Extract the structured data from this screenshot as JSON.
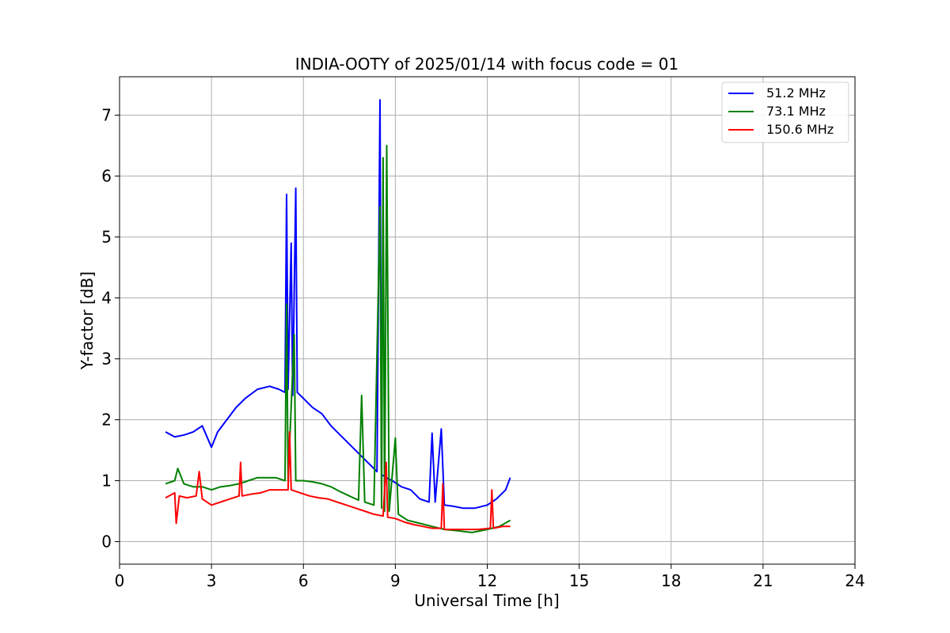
{
  "chart_data": {
    "type": "line",
    "title": "INDIA-OOTY of 2025/01/14 with focus code = 01",
    "xlabel": "Universal Time [h]",
    "ylabel": "Y-factor [dB]",
    "xlim": [
      0,
      24
    ],
    "ylim": [
      -0.37,
      7.63
    ],
    "xticks": [
      0,
      3,
      6,
      9,
      12,
      15,
      18,
      21,
      24
    ],
    "yticks": [
      0,
      1,
      2,
      3,
      4,
      5,
      6,
      7
    ],
    "grid": true,
    "legend_position": "top-right",
    "series": [
      {
        "name": "  51.2 MHz",
        "color": "#0000ff",
        "points": [
          [
            1.5,
            1.8
          ],
          [
            1.8,
            1.72
          ],
          [
            2.1,
            1.75
          ],
          [
            2.4,
            1.8
          ],
          [
            2.7,
            1.9
          ],
          [
            3.0,
            1.55
          ],
          [
            3.2,
            1.8
          ],
          [
            3.5,
            2.0
          ],
          [
            3.8,
            2.2
          ],
          [
            4.1,
            2.35
          ],
          [
            4.5,
            2.5
          ],
          [
            4.9,
            2.55
          ],
          [
            5.2,
            2.5
          ],
          [
            5.4,
            2.45
          ],
          [
            5.45,
            5.7
          ],
          [
            5.5,
            2.5
          ],
          [
            5.6,
            4.9
          ],
          [
            5.65,
            2.4
          ],
          [
            5.75,
            5.8
          ],
          [
            5.8,
            2.45
          ],
          [
            6.0,
            2.35
          ],
          [
            6.3,
            2.2
          ],
          [
            6.6,
            2.1
          ],
          [
            6.9,
            1.9
          ],
          [
            7.2,
            1.75
          ],
          [
            7.5,
            1.6
          ],
          [
            7.8,
            1.45
          ],
          [
            8.1,
            1.3
          ],
          [
            8.4,
            1.15
          ],
          [
            8.5,
            7.25
          ],
          [
            8.55,
            1.1
          ],
          [
            8.7,
            1.05
          ],
          [
            8.9,
            1.0
          ],
          [
            9.2,
            0.9
          ],
          [
            9.5,
            0.85
          ],
          [
            9.8,
            0.7
          ],
          [
            10.1,
            0.65
          ],
          [
            10.2,
            1.78
          ],
          [
            10.3,
            0.65
          ],
          [
            10.5,
            1.85
          ],
          [
            10.6,
            0.6
          ],
          [
            10.9,
            0.58
          ],
          [
            11.2,
            0.55
          ],
          [
            11.6,
            0.55
          ],
          [
            12.0,
            0.6
          ],
          [
            12.3,
            0.7
          ],
          [
            12.6,
            0.85
          ],
          [
            12.75,
            1.05
          ]
        ]
      },
      {
        "name": "  73.1 MHz",
        "color": "#008000",
        "points": [
          [
            1.5,
            0.95
          ],
          [
            1.8,
            1.0
          ],
          [
            1.9,
            1.2
          ],
          [
            2.1,
            0.95
          ],
          [
            2.4,
            0.9
          ],
          [
            2.7,
            0.9
          ],
          [
            3.0,
            0.85
          ],
          [
            3.3,
            0.9
          ],
          [
            3.6,
            0.92
          ],
          [
            3.9,
            0.95
          ],
          [
            4.2,
            1.0
          ],
          [
            4.5,
            1.05
          ],
          [
            4.8,
            1.05
          ],
          [
            5.1,
            1.05
          ],
          [
            5.4,
            1.0
          ],
          [
            5.45,
            3.9
          ],
          [
            5.5,
            1.0
          ],
          [
            5.7,
            3.4
          ],
          [
            5.75,
            1.0
          ],
          [
            6.0,
            1.0
          ],
          [
            6.3,
            0.98
          ],
          [
            6.6,
            0.95
          ],
          [
            6.9,
            0.9
          ],
          [
            7.2,
            0.82
          ],
          [
            7.5,
            0.75
          ],
          [
            7.8,
            0.68
          ],
          [
            7.9,
            2.4
          ],
          [
            8.0,
            0.65
          ],
          [
            8.3,
            0.6
          ],
          [
            8.5,
            5.5
          ],
          [
            8.55,
            0.55
          ],
          [
            8.6,
            6.3
          ],
          [
            8.65,
            0.5
          ],
          [
            8.72,
            6.5
          ],
          [
            8.8,
            0.5
          ],
          [
            9.0,
            1.7
          ],
          [
            9.1,
            0.45
          ],
          [
            9.4,
            0.35
          ],
          [
            9.8,
            0.3
          ],
          [
            10.2,
            0.25
          ],
          [
            10.6,
            0.2
          ],
          [
            11.0,
            0.18
          ],
          [
            11.5,
            0.15
          ],
          [
            12.0,
            0.2
          ],
          [
            12.4,
            0.25
          ],
          [
            12.75,
            0.35
          ]
        ]
      },
      {
        "name": "150.6 MHz",
        "color": "#ff0000",
        "points": [
          [
            1.5,
            0.72
          ],
          [
            1.8,
            0.8
          ],
          [
            1.85,
            0.3
          ],
          [
            1.95,
            0.75
          ],
          [
            2.2,
            0.72
          ],
          [
            2.5,
            0.75
          ],
          [
            2.6,
            1.15
          ],
          [
            2.7,
            0.7
          ],
          [
            3.0,
            0.6
          ],
          [
            3.3,
            0.65
          ],
          [
            3.6,
            0.7
          ],
          [
            3.9,
            0.75
          ],
          [
            3.95,
            1.3
          ],
          [
            4.0,
            0.75
          ],
          [
            4.3,
            0.78
          ],
          [
            4.6,
            0.8
          ],
          [
            4.9,
            0.85
          ],
          [
            5.2,
            0.85
          ],
          [
            5.5,
            0.85
          ],
          [
            5.55,
            1.8
          ],
          [
            5.6,
            0.85
          ],
          [
            5.9,
            0.8
          ],
          [
            6.2,
            0.75
          ],
          [
            6.5,
            0.72
          ],
          [
            6.8,
            0.7
          ],
          [
            7.1,
            0.65
          ],
          [
            7.4,
            0.6
          ],
          [
            7.7,
            0.55
          ],
          [
            8.0,
            0.5
          ],
          [
            8.3,
            0.45
          ],
          [
            8.6,
            0.42
          ],
          [
            8.7,
            1.3
          ],
          [
            8.75,
            0.4
          ],
          [
            9.0,
            0.38
          ],
          [
            9.3,
            0.32
          ],
          [
            9.6,
            0.28
          ],
          [
            9.9,
            0.25
          ],
          [
            10.2,
            0.22
          ],
          [
            10.5,
            0.22
          ],
          [
            10.55,
            0.95
          ],
          [
            10.6,
            0.2
          ],
          [
            10.9,
            0.2
          ],
          [
            11.3,
            0.2
          ],
          [
            11.7,
            0.2
          ],
          [
            12.1,
            0.22
          ],
          [
            12.15,
            0.85
          ],
          [
            12.2,
            0.22
          ],
          [
            12.5,
            0.25
          ],
          [
            12.75,
            0.25
          ]
        ]
      }
    ]
  }
}
